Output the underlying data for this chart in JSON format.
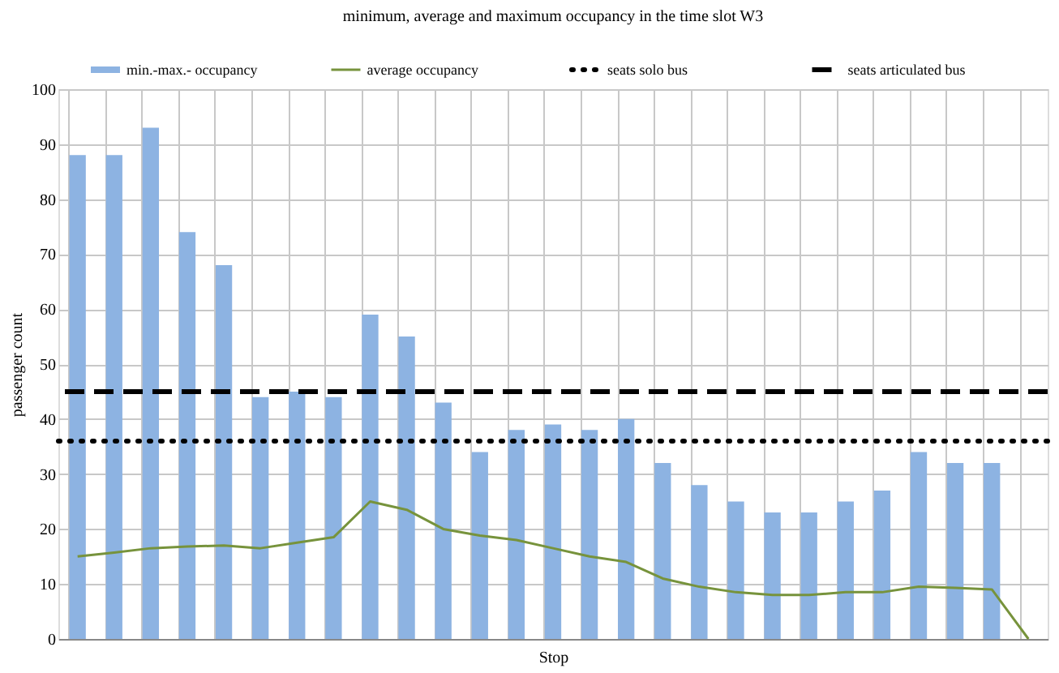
{
  "chart_data": {
    "type": "bar",
    "title": "minimum, average and maximum occupancy in the time slot W3",
    "xlabel": "Stop",
    "ylabel": "passenger count",
    "categories": [
      null,
      null,
      null,
      null,
      null,
      null,
      null,
      null,
      null,
      null,
      null,
      null,
      null,
      null,
      null,
      null,
      null,
      null,
      null,
      null,
      null,
      null,
      null,
      null,
      null,
      null,
      null
    ],
    "series": [
      {
        "name": "min.-max.- occupancy",
        "color": "#8db3e2",
        "values": [
          88,
          88,
          93,
          74,
          68,
          44,
          45,
          44,
          59,
          55,
          43,
          34,
          38,
          39,
          38,
          40,
          32,
          28,
          25,
          23,
          23,
          25,
          27,
          34,
          32,
          32,
          null
        ]
      },
      {
        "name": "average occupancy",
        "type": "line",
        "color": "#77933c",
        "values": [
          15,
          15.7,
          16.5,
          16.8,
          17,
          16.5,
          17.5,
          18.5,
          25,
          23.5,
          20,
          18.8,
          18,
          16.5,
          15,
          14,
          11,
          9.5,
          8.5,
          8,
          8,
          8.5,
          8.5,
          9.5,
          9.3,
          9,
          0
        ]
      }
    ],
    "ref_lines": [
      {
        "axis": "y",
        "value": 36,
        "label": "seats solo bus",
        "color": "#000000",
        "line_style": "dotted"
      },
      {
        "axis": "y",
        "value": 45,
        "label": "seats articulated bus",
        "color": "#000000",
        "line_style": "dashed"
      }
    ],
    "ylim": [
      0,
      100
    ],
    "yticks": [
      0,
      10,
      20,
      30,
      40,
      50,
      60,
      70,
      80,
      90,
      100
    ],
    "grid": true,
    "legend": "top"
  }
}
